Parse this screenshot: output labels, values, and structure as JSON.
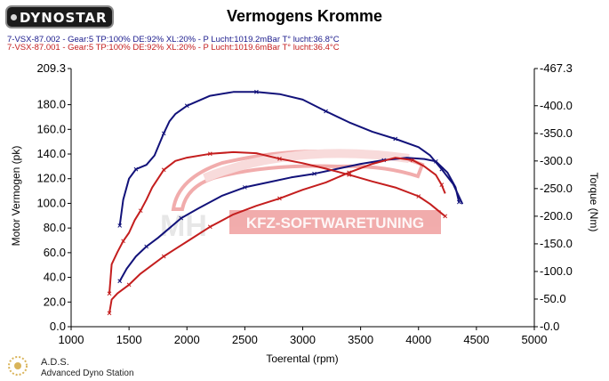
{
  "header": {
    "logo_text": "DYNOSTAR",
    "title": "Vermogens Kromme",
    "runs": [
      "7-VSX-87.002 - Gear:5 TP:100% DE:92% XL:20%   - P Lucht:1019.2mBar T° lucht:36.8°C",
      "7-VSX-87.001 - Gear:5 TP:100% DE:92% XL:20%   - P Lucht:1019.6mBar T° lucht:36.4°C"
    ]
  },
  "watermark": {
    "text": "KFZ-SOFTWARETUNING",
    "letters": "MH"
  },
  "footer": {
    "brand": "A.D.S.",
    "subtitle": "Advanced Dyno Station"
  },
  "colors": {
    "blue": "#12127a",
    "red": "#c41e1e",
    "watermark": "#e24a4a"
  },
  "chart_data": {
    "type": "line",
    "xlabel": "Toerental (rpm)",
    "ylabel_left": "Motor Vermogen (pk)",
    "ylabel_right": "Torque (Nm)",
    "xlim": [
      1000,
      5000
    ],
    "ylim_left": [
      0,
      209.3
    ],
    "ylim_right": [
      0,
      467.3
    ],
    "x_ticks": [
      "1000",
      "1500",
      "2000",
      "2500",
      "3000",
      "3500",
      "4000",
      "4500",
      "5000"
    ],
    "y_ticks_left": [
      "0.0",
      "20.0",
      "40.0",
      "60.0",
      "80.0",
      "100.0",
      "120.0",
      "140.0",
      "160.0",
      "180.0",
      "209.3"
    ],
    "y_ticks_right": [
      "-0.0",
      "-50.0",
      "-100.0",
      "-150.0",
      "-200.0",
      "-250.0",
      "-300.0",
      "-350.0",
      "-400.0",
      "-467.3"
    ],
    "grid": false,
    "series": [
      {
        "id": "blue_power",
        "color": "#12127a",
        "axis": "left",
        "points": [
          [
            1420,
            37
          ],
          [
            1480,
            47
          ],
          [
            1560,
            57
          ],
          [
            1650,
            65
          ],
          [
            1750,
            72
          ],
          [
            1850,
            80
          ],
          [
            1950,
            88
          ],
          [
            2100,
            96
          ],
          [
            2300,
            106
          ],
          [
            2500,
            113
          ],
          [
            2700,
            117
          ],
          [
            2900,
            121
          ],
          [
            3100,
            124
          ],
          [
            3300,
            128
          ],
          [
            3500,
            132
          ],
          [
            3700,
            135
          ],
          [
            3900,
            137
          ],
          [
            4050,
            136
          ],
          [
            4150,
            134
          ],
          [
            4250,
            125
          ],
          [
            4320,
            113
          ],
          [
            4350,
            101
          ]
        ]
      },
      {
        "id": "blue_torque",
        "color": "#12127a",
        "axis": "right",
        "points": [
          [
            1420,
            183
          ],
          [
            1450,
            230
          ],
          [
            1500,
            268
          ],
          [
            1560,
            285
          ],
          [
            1650,
            293
          ],
          [
            1720,
            310
          ],
          [
            1800,
            350
          ],
          [
            1850,
            372
          ],
          [
            1900,
            385
          ],
          [
            2000,
            400
          ],
          [
            2200,
            418
          ],
          [
            2400,
            425
          ],
          [
            2600,
            425
          ],
          [
            2800,
            421
          ],
          [
            3000,
            411
          ],
          [
            3200,
            390
          ],
          [
            3400,
            370
          ],
          [
            3600,
            353
          ],
          [
            3800,
            340
          ],
          [
            4000,
            325
          ],
          [
            4100,
            310
          ],
          [
            4200,
            285
          ],
          [
            4300,
            258
          ],
          [
            4380,
            222
          ]
        ]
      },
      {
        "id": "red_power",
        "color": "#c41e1e",
        "axis": "left",
        "points": [
          [
            1330,
            11
          ],
          [
            1350,
            22
          ],
          [
            1400,
            27
          ],
          [
            1500,
            34
          ],
          [
            1600,
            43
          ],
          [
            1700,
            50
          ],
          [
            1800,
            57
          ],
          [
            1900,
            63
          ],
          [
            2000,
            69
          ],
          [
            2200,
            81
          ],
          [
            2400,
            91
          ],
          [
            2600,
            98
          ],
          [
            2800,
            104
          ],
          [
            3000,
            111
          ],
          [
            3200,
            117
          ],
          [
            3400,
            125
          ],
          [
            3600,
            132
          ],
          [
            3800,
            137
          ],
          [
            3950,
            135
          ],
          [
            4050,
            130
          ],
          [
            4150,
            123
          ],
          [
            4200,
            115
          ],
          [
            4230,
            108
          ]
        ]
      },
      {
        "id": "red_torque",
        "color": "#c41e1e",
        "axis": "right",
        "points": [
          [
            1330,
            60
          ],
          [
            1350,
            113
          ],
          [
            1400,
            135
          ],
          [
            1450,
            155
          ],
          [
            1500,
            170
          ],
          [
            1550,
            193
          ],
          [
            1600,
            210
          ],
          [
            1650,
            230
          ],
          [
            1700,
            252
          ],
          [
            1800,
            284
          ],
          [
            1900,
            300
          ],
          [
            2000,
            306
          ],
          [
            2200,
            313
          ],
          [
            2400,
            316
          ],
          [
            2600,
            314
          ],
          [
            2800,
            304
          ],
          [
            3000,
            296
          ],
          [
            3200,
            286
          ],
          [
            3400,
            275
          ],
          [
            3600,
            263
          ],
          [
            3800,
            252
          ],
          [
            4000,
            236
          ],
          [
            4100,
            222
          ],
          [
            4200,
            205
          ],
          [
            4230,
            200
          ]
        ]
      }
    ]
  }
}
